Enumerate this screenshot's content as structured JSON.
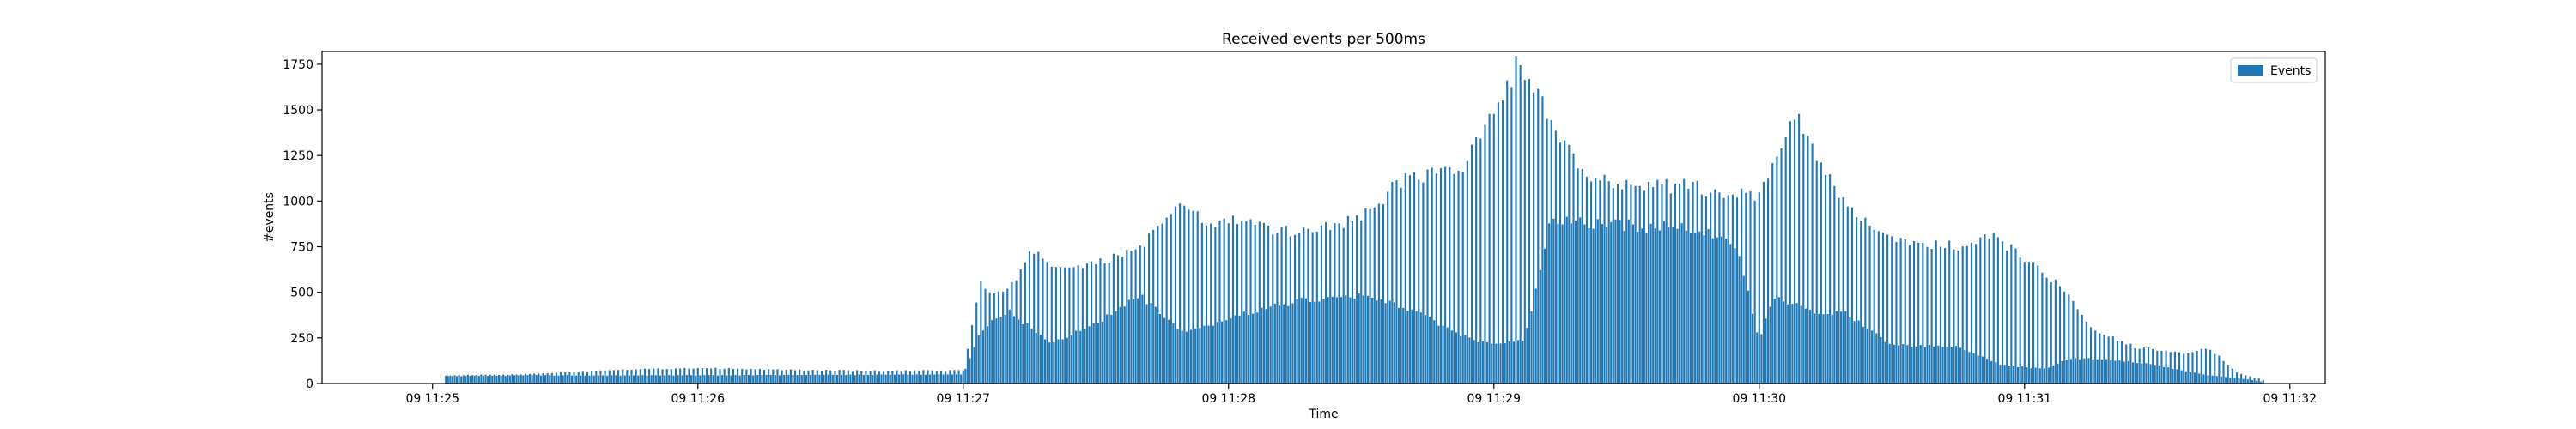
{
  "chart_data": {
    "type": "bar",
    "title": "Received events per 500ms",
    "xlabel": "Time",
    "ylabel": "#events",
    "ylim": [
      0,
      1820
    ],
    "xlim_seconds_from_1125": [
      -25,
      428
    ],
    "yticks": [
      0,
      250,
      500,
      750,
      1000,
      1250,
      1500,
      1750
    ],
    "ytick_labels": [
      "0",
      "250",
      "500",
      "750",
      "1000",
      "1250",
      "1500",
      "1750"
    ],
    "xticks_seconds_from_1125": [
      0,
      60,
      120,
      180,
      240,
      300,
      360,
      420
    ],
    "xtick_labels": [
      "09 11:25",
      "09 11:26",
      "09 11:27",
      "09 11:28",
      "09 11:29",
      "09 11:30",
      "09 11:31",
      "09 11:32"
    ],
    "grid": false,
    "legend_position": "top-right",
    "series": [
      {
        "name": "Events",
        "color": "#1f77b4"
      }
    ],
    "bar_interval_seconds": 0.5,
    "data_start_seconds_from_1125": 3,
    "data_end_seconds_from_1125": 414,
    "envelope_peak": [
      [
        3,
        45
      ],
      [
        20,
        50
      ],
      [
        40,
        75
      ],
      [
        60,
        85
      ],
      [
        80,
        75
      ],
      [
        100,
        70
      ],
      [
        120,
        72
      ],
      [
        124,
        560
      ],
      [
        126,
        490
      ],
      [
        130,
        500
      ],
      [
        133,
        620
      ],
      [
        136,
        740
      ],
      [
        140,
        640
      ],
      [
        150,
        650
      ],
      [
        160,
        750
      ],
      [
        170,
        990
      ],
      [
        175,
        870
      ],
      [
        183,
        900
      ],
      [
        190,
        830
      ],
      [
        200,
        850
      ],
      [
        210,
        910
      ],
      [
        220,
        1130
      ],
      [
        233,
        1180
      ],
      [
        240,
        1480
      ],
      [
        245,
        1740
      ],
      [
        250,
        1560
      ],
      [
        256,
        1300
      ],
      [
        260,
        1140
      ],
      [
        270,
        1100
      ],
      [
        283,
        1080
      ],
      [
        300,
        1020
      ],
      [
        308,
        1480
      ],
      [
        312,
        1320
      ],
      [
        318,
        1000
      ],
      [
        330,
        780
      ],
      [
        345,
        750
      ],
      [
        353,
        800
      ],
      [
        358,
        720
      ],
      [
        368,
        540
      ],
      [
        375,
        300
      ],
      [
        385,
        200
      ],
      [
        396,
        170
      ],
      [
        402,
        190
      ],
      [
        408,
        60
      ],
      [
        414,
        20
      ]
    ],
    "envelope_base": [
      [
        3,
        40
      ],
      [
        20,
        45
      ],
      [
        60,
        45
      ],
      [
        120,
        50
      ],
      [
        124,
        290
      ],
      [
        130,
        400
      ],
      [
        140,
        220
      ],
      [
        150,
        330
      ],
      [
        160,
        480
      ],
      [
        170,
        270
      ],
      [
        183,
        380
      ],
      [
        195,
        450
      ],
      [
        210,
        480
      ],
      [
        220,
        420
      ],
      [
        233,
        260
      ],
      [
        240,
        210
      ],
      [
        247,
        240
      ],
      [
        253,
        900
      ],
      [
        260,
        880
      ],
      [
        275,
        860
      ],
      [
        285,
        850
      ],
      [
        295,
        760
      ],
      [
        300,
        220
      ],
      [
        303,
        470
      ],
      [
        312,
        400
      ],
      [
        320,
        380
      ],
      [
        330,
        210
      ],
      [
        345,
        200
      ],
      [
        355,
        100
      ],
      [
        365,
        80
      ],
      [
        370,
        140
      ],
      [
        380,
        130
      ],
      [
        390,
        100
      ],
      [
        400,
        50
      ],
      [
        408,
        30
      ],
      [
        414,
        10
      ]
    ]
  }
}
